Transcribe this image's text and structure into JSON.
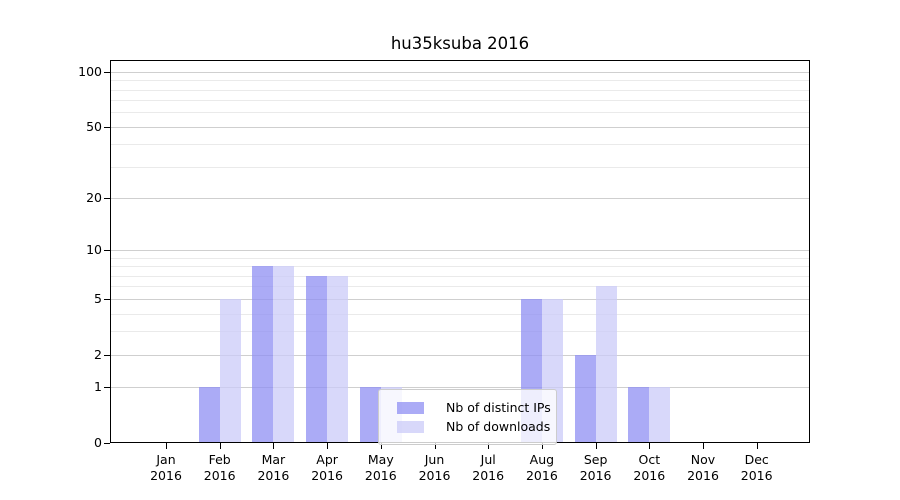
{
  "title": "hu35ksuba 2016",
  "colors": {
    "bar_distinct_ips": "rgba(143,143,243,0.75)",
    "bar_downloads": "rgba(203,203,248,0.75)",
    "grid_major": "#cfcfcf",
    "grid_minor": "#eaeaea",
    "axis": "#000000",
    "legend_border": "#cccccc",
    "legend_background": "rgba(255,255,255,0.8)",
    "text": "#000000"
  },
  "legend": {
    "items": [
      {
        "label": "Nb of distinct IPs"
      },
      {
        "label": "Nb of downloads"
      }
    ]
  },
  "chart_data": {
    "type": "bar",
    "title": "hu35ksuba 2016",
    "categories": [
      "Jan 2016",
      "Feb 2016",
      "Mar 2016",
      "Apr 2016",
      "May 2016",
      "Jun 2016",
      "Jul 2016",
      "Aug 2016",
      "Sep 2016",
      "Oct 2016",
      "Nov 2016",
      "Dec 2016"
    ],
    "series": [
      {
        "name": "Nb of distinct IPs",
        "values": [
          0,
          1,
          8,
          7,
          1,
          0,
          0,
          5,
          2,
          1,
          0,
          0
        ]
      },
      {
        "name": "Nb of downloads",
        "values": [
          0,
          5,
          8,
          7,
          1,
          0,
          0,
          5,
          6,
          1,
          0,
          0
        ]
      }
    ],
    "xlabel": "",
    "ylabel": "",
    "yscale": "log10(1+y)",
    "y_ticks": [
      0,
      1,
      2,
      5,
      10,
      20,
      50,
      100
    ],
    "y_minor_gridlines": [
      3,
      4,
      6,
      7,
      8,
      9,
      30,
      40,
      60,
      70,
      80,
      90
    ],
    "ylim": [
      0,
      116
    ],
    "grid": true,
    "legend_position": "lower center inside"
  }
}
